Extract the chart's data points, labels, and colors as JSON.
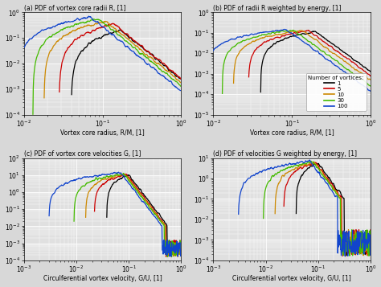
{
  "title_a": "(a) PDF of vortex core radii R, [1]",
  "title_b": "(b) PDF of radii R weighted by energy, [1]",
  "title_c": "(c) PDF of vortex core velocities G, [1]",
  "title_d": "(d) PDF of velocities G weighted by energy, [1]",
  "xlabel_ab": "Vortex core radius, R/M, [1]",
  "xlabel_cd": "Circulferential vortex velocity, G/U, [1]",
  "colors": [
    "#000000",
    "#cc0000",
    "#cc8800",
    "#44bb00",
    "#1144cc"
  ],
  "legend_labels": [
    "1",
    "5",
    "10",
    "30",
    "100"
  ],
  "legend_title": "Number of vortices:",
  "bg_color": "#e0e0e0",
  "grid_color": "#ffffff",
  "n_vortices": [
    1,
    5,
    10,
    30,
    100
  ],
  "radii_xlim": [
    -2.0,
    0.05
  ],
  "radii_a_ylim": [
    -4,
    0.1
  ],
  "radii_b_ylim": [
    -5,
    0.1
  ],
  "vel_xlim": [
    -3,
    0.1
  ],
  "vel_c_ylim": [
    -4,
    2.1
  ],
  "vel_d_ylim": [
    -4,
    1.1
  ]
}
